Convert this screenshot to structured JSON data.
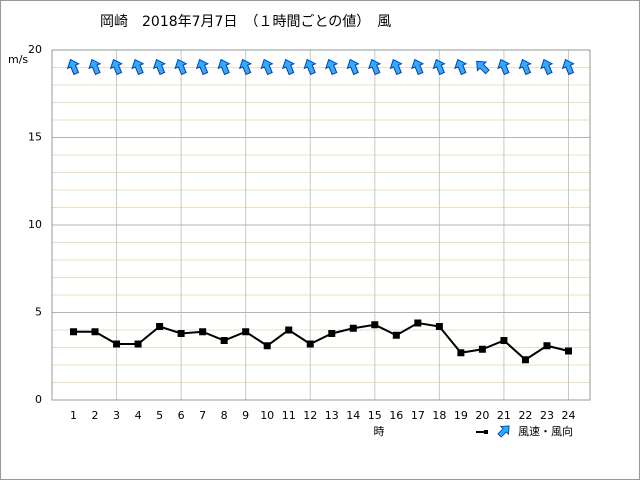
{
  "chart_data": {
    "type": "line",
    "title": "岡崎　2018年7月7日　（１時間ごとの値）　風",
    "y_label": "m/s",
    "x_label": "時",
    "x": [
      1,
      2,
      3,
      4,
      5,
      6,
      7,
      8,
      9,
      10,
      11,
      12,
      13,
      14,
      15,
      16,
      17,
      18,
      19,
      20,
      21,
      22,
      23,
      24
    ],
    "xlim": [
      0,
      25
    ],
    "ylim": [
      0,
      20
    ],
    "yticks": [
      0,
      5,
      10,
      15,
      20
    ],
    "grid": true,
    "legend": "bottom-right",
    "series": [
      {
        "name": "風速・風向",
        "color": "#000000",
        "values": [
          3.9,
          3.9,
          3.2,
          3.2,
          4.2,
          3.8,
          3.9,
          3.4,
          3.9,
          3.1,
          4.0,
          3.2,
          3.8,
          4.1,
          4.3,
          3.7,
          4.4,
          4.2,
          2.7,
          2.9,
          3.4,
          2.3,
          3.1,
          2.8
        ],
        "directions": [
          337.5,
          337.5,
          337.5,
          337.5,
          337.5,
          337.5,
          337.5,
          337.5,
          337.5,
          337.5,
          337.5,
          337.5,
          337.5,
          337.5,
          337.5,
          337.5,
          337.5,
          337.5,
          337.5,
          315,
          337.5,
          337.5,
          337.5,
          337.5
        ],
        "arrow_color": "#33aaff"
      }
    ]
  }
}
